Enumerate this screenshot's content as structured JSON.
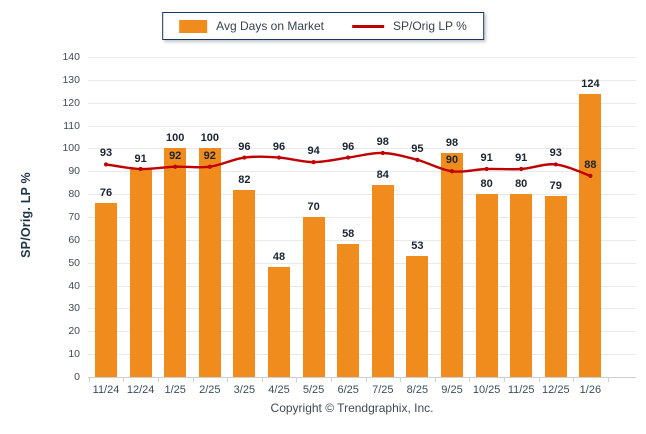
{
  "legend": {
    "items": [
      {
        "label": "Avg Days on Market",
        "type": "bar"
      },
      {
        "label": "SP/Orig LP %",
        "type": "line"
      }
    ]
  },
  "y_axis_title": "SP/Orig. LP %",
  "footer": {
    "copyright": "Copyright © Trendgraphix, Inc."
  },
  "colors": {
    "bar": "#F08C1E",
    "line": "#C00000",
    "data_label": "#1B2430",
    "axis_text": "#3C4C5C",
    "legend_border": "#17375E",
    "grid": "#E9E9E9"
  },
  "chart_data": {
    "type": "bar+line",
    "categories": [
      "11/24",
      "12/24",
      "1/25",
      "2/25",
      "3/25",
      "4/25",
      "5/25",
      "6/25",
      "7/25",
      "8/25",
      "9/25",
      "10/25",
      "11/25",
      "12/25",
      "1/26"
    ],
    "series": [
      {
        "name": "Avg Days on Market",
        "type": "bar",
        "color": "#F08C1E",
        "values": [
          76,
          91,
          100,
          100,
          82,
          48,
          70,
          58,
          84,
          53,
          98,
          80,
          80,
          79,
          124
        ]
      },
      {
        "name": "SP/Orig LP %",
        "type": "line",
        "color": "#C00000",
        "values": [
          93,
          91,
          92,
          92,
          96,
          96,
          94,
          96,
          98,
          95,
          90,
          91,
          91,
          93,
          88
        ]
      }
    ],
    "title": "",
    "xlabel": "",
    "ylabel": "SP/Orig. LP %",
    "ylim": [
      0,
      140
    ],
    "ytick_step": 10,
    "grid": true,
    "data_labels": true,
    "legend_position": "top-center"
  }
}
